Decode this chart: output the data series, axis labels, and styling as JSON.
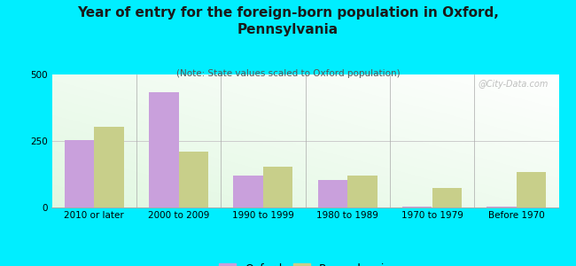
{
  "title": "Year of entry for the foreign-born population in Oxford,\nPennsylvania",
  "subtitle": "(Note: State values scaled to Oxford population)",
  "categories": [
    "2010 or later",
    "2000 to 2009",
    "1990 to 1999",
    "1980 to 1989",
    "1970 to 1979",
    "Before 1970"
  ],
  "oxford_values": [
    252,
    435,
    120,
    105,
    2,
    5
  ],
  "pennsylvania_values": [
    305,
    210,
    155,
    120,
    75,
    135
  ],
  "oxford_color": "#c9a0dc",
  "pennsylvania_color": "#c8cf8a",
  "bg_color": "#00eeff",
  "ylim": [
    0,
    500
  ],
  "yticks": [
    0,
    250,
    500
  ],
  "bar_width": 0.35,
  "title_fontsize": 11,
  "subtitle_fontsize": 7.5,
  "tick_fontsize": 7.5,
  "legend_fontsize": 9,
  "watermark": "@City-Data.com"
}
